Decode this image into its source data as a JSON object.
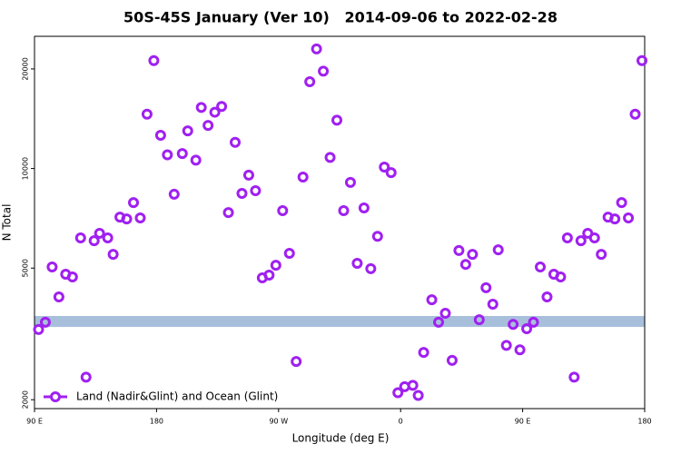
{
  "chart_data": {
    "type": "scatter",
    "title": "50S-45S January (Ver 10)   2014-09-06 to 2022-02-28",
    "x_label": "Longitude (deg E)",
    "y_label": "N Total",
    "log_y": true,
    "legend": "lower left",
    "xlim": [
      90,
      540
    ],
    "xticks": [
      {
        "value": 90,
        "label": "90 E"
      },
      {
        "value": 180,
        "label": "180"
      },
      {
        "value": 270,
        "label": "90 W"
      },
      {
        "value": 360,
        "label": "0"
      },
      {
        "value": 450,
        "label": "90 E"
      },
      {
        "value": 540,
        "label": "180"
      }
    ],
    "ylim": [
      1880,
      25100
    ],
    "yticks": [
      2000,
      5000,
      10000,
      20000
    ],
    "series": [
      {
        "name": "Land (Nadir&Glint) and Ocean (Glint)",
        "color": "#a020f0",
        "x": [
          93,
          98,
          103,
          108,
          113,
          118,
          124,
          128,
          134,
          138,
          144,
          148,
          153,
          158,
          163,
          168,
          173,
          178,
          183,
          188,
          193,
          199,
          203,
          209,
          213,
          218,
          223,
          228,
          233,
          238,
          243,
          248,
          253,
          258,
          263,
          268,
          273,
          278,
          283,
          288,
          293,
          298,
          303,
          308,
          313,
          318,
          323,
          328,
          333,
          338,
          343,
          348,
          353,
          358,
          363,
          369,
          373,
          377,
          383,
          388,
          393,
          398,
          403,
          408,
          413,
          418,
          423,
          428,
          432,
          438,
          443,
          448,
          453,
          458,
          463,
          468,
          473,
          478,
          483,
          488,
          493,
          498,
          503,
          508,
          513,
          518,
          523,
          528,
          533,
          538
        ],
        "values": [
          3260,
          3430,
          5040,
          4090,
          4790,
          4700,
          6170,
          2340,
          6050,
          6370,
          6170,
          5500,
          7130,
          7040,
          7890,
          7090,
          14600,
          21200,
          12600,
          11000,
          8360,
          11100,
          13000,
          10600,
          15300,
          13500,
          14800,
          15400,
          7360,
          12000,
          8410,
          9550,
          8570,
          4670,
          4760,
          5100,
          7460,
          5540,
          2610,
          9420,
          18300,
          23000,
          19700,
          10800,
          14000,
          7460,
          9080,
          5170,
          7600,
          4980,
          6240,
          10100,
          9720,
          2100,
          2190,
          2210,
          2060,
          2780,
          4010,
          3430,
          3650,
          2630,
          5650,
          5130,
          5500,
          3490,
          4360,
          3890,
          5680,
          2920,
          3380,
          2830,
          3280,
          3430,
          5040,
          4090,
          4790,
          4700,
          6170,
          2340,
          6050,
          6370,
          6170,
          5500,
          7130,
          7040,
          7890,
          7090,
          14600,
          21200
        ]
      }
    ]
  }
}
